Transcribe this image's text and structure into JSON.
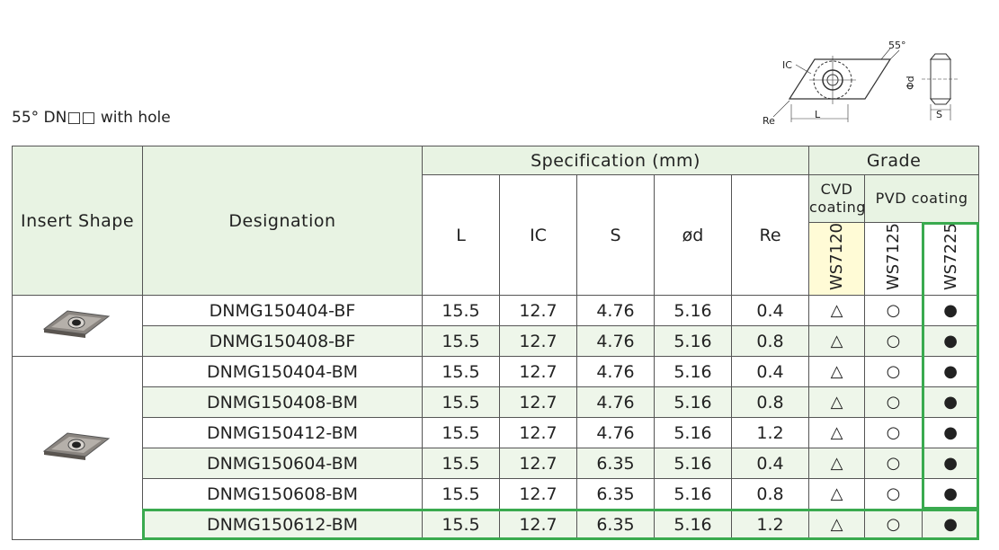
{
  "title": "55° DN□□ with hole",
  "diagram": {
    "ic": "IC",
    "re": "Re",
    "l": "L",
    "angle": "55°",
    "d": "Φd",
    "s": "S"
  },
  "table": {
    "header": {
      "insert_shape": "Insert Shape",
      "designation": "Designation",
      "specification": "Specification (mm)",
      "grade": "Grade",
      "columns": [
        "L",
        "IC",
        "S",
        "ød",
        "Re"
      ],
      "cvd": "CVD coating",
      "pvd": "PVD coating",
      "grades": [
        "WS7120",
        "WS7125",
        "WS7225"
      ]
    },
    "rows": [
      [
        "DNMG150404-BF",
        15.5,
        12.7,
        4.76,
        5.16,
        0.4,
        "△",
        "○",
        "●"
      ],
      [
        "DNMG150408-BF",
        15.5,
        12.7,
        4.76,
        5.16,
        0.8,
        "△",
        "○",
        "●"
      ],
      [
        "DNMG150404-BM",
        15.5,
        12.7,
        4.76,
        5.16,
        0.4,
        "△",
        "○",
        "●"
      ],
      [
        "DNMG150408-BM",
        15.5,
        12.7,
        4.76,
        5.16,
        0.8,
        "△",
        "○",
        "●"
      ],
      [
        "DNMG150412-BM",
        15.5,
        12.7,
        4.76,
        5.16,
        1.2,
        "△",
        "○",
        "●"
      ],
      [
        "DNMG150604-BM",
        15.5,
        12.7,
        6.35,
        5.16,
        0.4,
        "△",
        "○",
        "●"
      ],
      [
        "DNMG150608-BM",
        15.5,
        12.7,
        6.35,
        5.16,
        0.8,
        "△",
        "○",
        "●"
      ],
      [
        "DNMG150612-BM",
        15.5,
        12.7,
        6.35,
        5.16,
        1.2,
        "△",
        "○",
        "●"
      ]
    ]
  }
}
